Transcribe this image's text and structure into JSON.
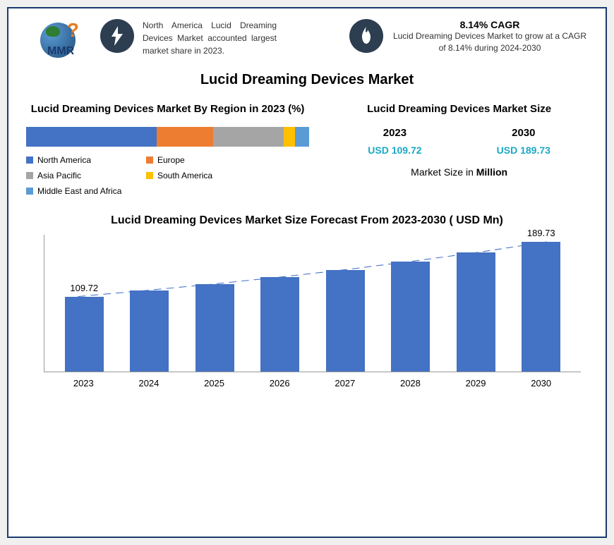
{
  "header": {
    "logo_text": "MMR",
    "info1_text": "North America Lucid Dreaming Devices Market accounted largest market share in 2023.",
    "cagr_title": "8.14% CAGR",
    "cagr_text": "Lucid Dreaming Devices Market to grow at a CAGR of 8.14% during 2024-2030"
  },
  "main_title": "Lucid Dreaming Devices Market",
  "region_chart": {
    "title": "Lucid Dreaming Devices Market By Region in 2023 (%)",
    "segments": [
      {
        "label": "North America",
        "pct": 46,
        "color": "#4472c4"
      },
      {
        "label": "Europe",
        "pct": 20,
        "color": "#ed7d31"
      },
      {
        "label": "Asia Pacific",
        "pct": 25,
        "color": "#a5a5a5"
      },
      {
        "label": "South America",
        "pct": 4,
        "color": "#ffc000"
      },
      {
        "label": "Middle East and Africa",
        "pct": 5,
        "color": "#5b9bd5"
      }
    ]
  },
  "market_size": {
    "title": "Lucid Dreaming Devices Market Size",
    "year1": "2023",
    "year2": "2030",
    "val1": "USD 109.72",
    "val2": "USD 189.73",
    "unit_prefix": "Market Size in ",
    "unit_bold": "Million"
  },
  "forecast": {
    "title": "Lucid Dreaming Devices Market Size Forecast From 2023-2030 ( USD Mn)",
    "max": 200,
    "bar_color": "#4472c4",
    "label_start": "109.72",
    "label_end": "189.73",
    "bars": [
      {
        "year": "2023",
        "val": 109.72
      },
      {
        "year": "2024",
        "val": 118.5
      },
      {
        "year": "2025",
        "val": 127.8
      },
      {
        "year": "2026",
        "val": 138.0
      },
      {
        "year": "2027",
        "val": 149.1
      },
      {
        "year": "2028",
        "val": 161.5
      },
      {
        "year": "2029",
        "val": 174.8
      },
      {
        "year": "2030",
        "val": 189.73
      }
    ]
  }
}
